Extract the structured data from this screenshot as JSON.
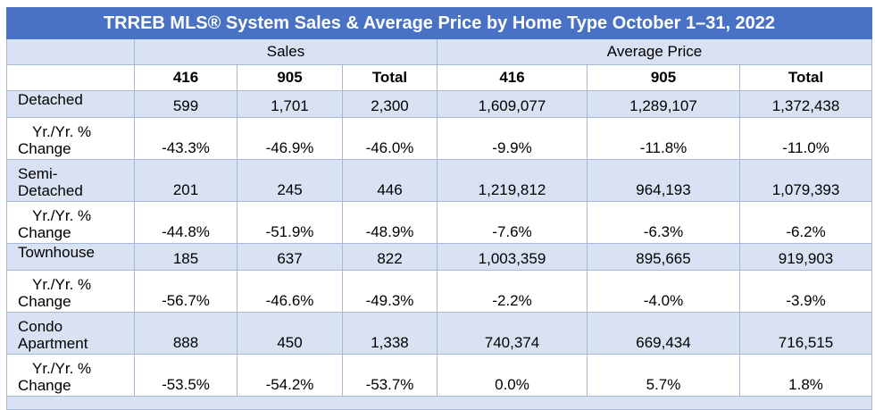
{
  "title": "TRREB MLS® System Sales & Average Price by Home Type October 1–31, 2022",
  "groups": {
    "sales": "Sales",
    "avg_price": "Average Price"
  },
  "columns": [
    "416",
    "905",
    "Total",
    "416",
    "905",
    "Total"
  ],
  "yoy_label": {
    "line1": "Yr./Yr. %",
    "line2": "Change"
  },
  "rows": [
    {
      "type": "Detached",
      "type_lines": [
        "Detached"
      ],
      "values": [
        "599",
        "1,701",
        "2,300",
        "1,609,077",
        "1,289,107",
        "1,372,438"
      ],
      "yoy": [
        "-43.3%",
        "-46.9%",
        "-46.0%",
        "-9.9%",
        "-11.8%",
        "-11.0%"
      ]
    },
    {
      "type": "Semi-Detached",
      "type_lines": [
        "Semi-",
        "Detached"
      ],
      "values": [
        "201",
        "245",
        "446",
        "1,219,812",
        "964,193",
        "1,079,393"
      ],
      "yoy": [
        "-44.8%",
        "-51.9%",
        "-48.9%",
        "-7.6%",
        "-6.3%",
        "-6.2%"
      ]
    },
    {
      "type": "Townhouse",
      "type_lines": [
        "Townhouse"
      ],
      "values": [
        "185",
        "637",
        "822",
        "1,003,359",
        "895,665",
        "919,903"
      ],
      "yoy": [
        "-56.7%",
        "-46.6%",
        "-49.3%",
        "-2.2%",
        "-4.0%",
        "-3.9%"
      ]
    },
    {
      "type": "Condo Apartment",
      "type_lines": [
        "Condo",
        "Apartment"
      ],
      "values": [
        "888",
        "450",
        "1,338",
        "740,374",
        "669,434",
        "716,515"
      ],
      "yoy": [
        "-53.5%",
        "-54.2%",
        "-53.7%",
        "0.0%",
        "5.7%",
        "1.8%"
      ]
    }
  ],
  "colors": {
    "header_blue": "#4a72c4",
    "row_blue": "#d9e2f3",
    "border": "#a8b8d8"
  }
}
